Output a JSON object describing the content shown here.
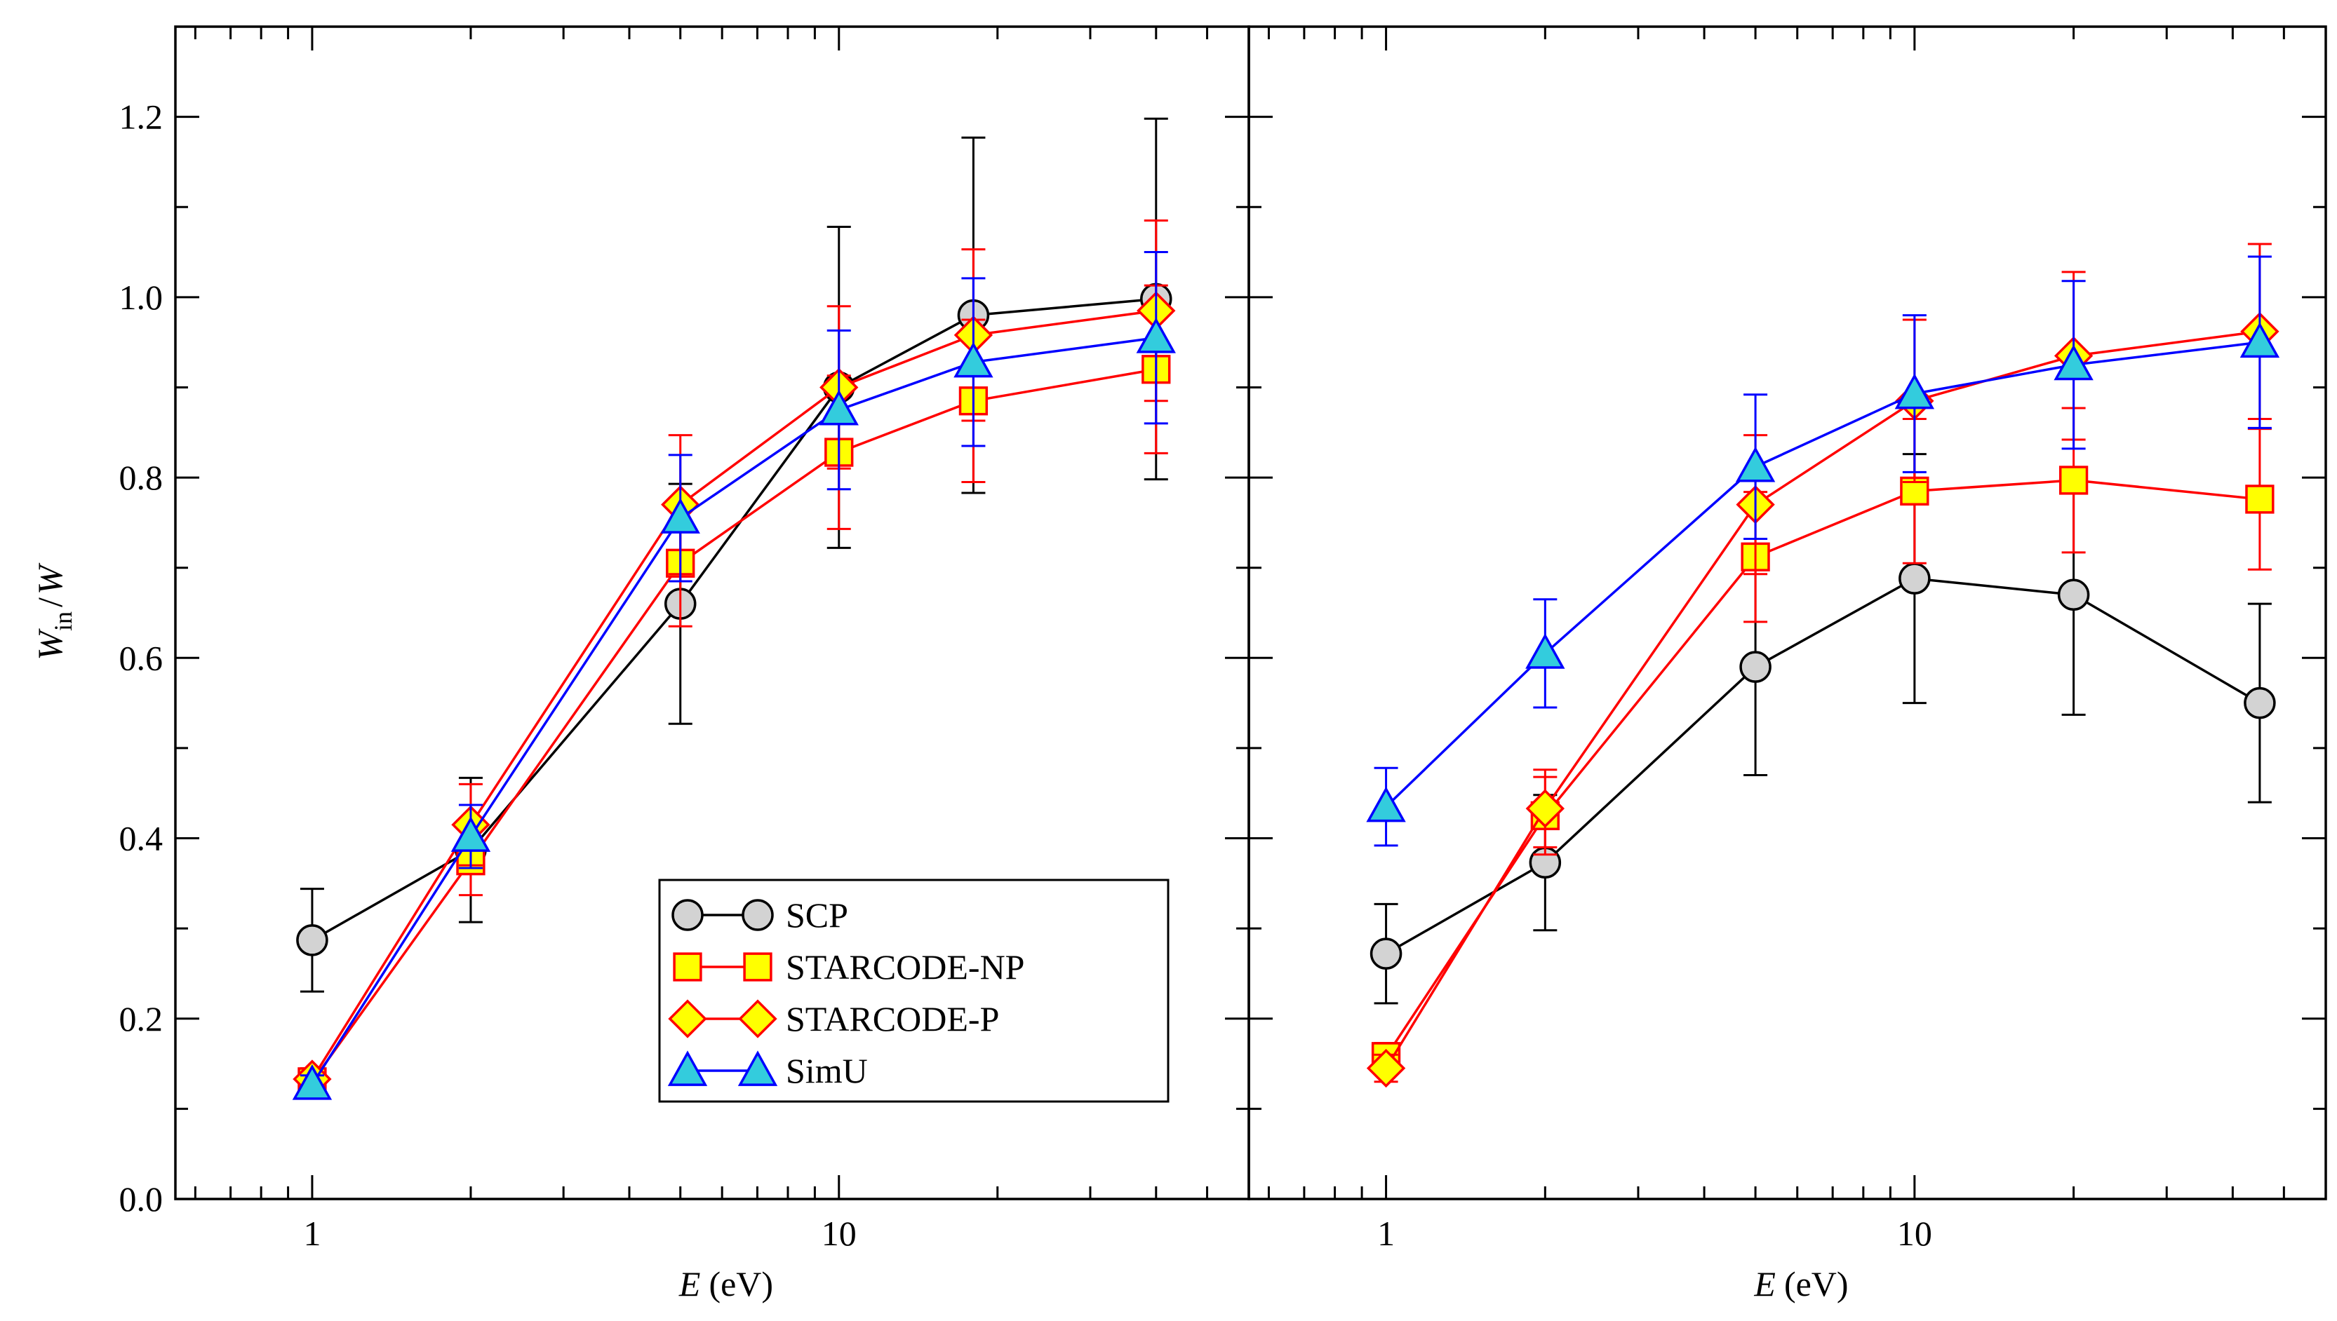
{
  "chart_data": [
    {
      "type": "line",
      "panel": "left",
      "xscale": "log",
      "xlim": [
        0.55,
        60
      ],
      "ylim": [
        0.0,
        1.3
      ],
      "xlabel": "E",
      "xlabel_unit": "(eV)",
      "ylabel": "W_in/W",
      "ylabel_parts": {
        "base": "W",
        "sub": "in",
        "slash": "/",
        "denom": "W"
      },
      "xticks": [
        1,
        10
      ],
      "xtick_labels": [
        "1",
        "10"
      ],
      "yticks": [
        0.0,
        0.2,
        0.4,
        0.6,
        0.8,
        1.0,
        1.2
      ],
      "ytick_labels": [
        "0.0",
        "0.2",
        "0.4",
        "0.6",
        "0.8",
        "1.0",
        "1.2"
      ],
      "series": [
        {
          "name": "SCP",
          "marker": "circle",
          "line_color": "#000000",
          "fill_color": "#d3d3d3",
          "edge_color": "#000000",
          "err_color": "#000000",
          "x": [
            1,
            2,
            5,
            10,
            18,
            40
          ],
          "y": [
            0.287,
            0.387,
            0.66,
            0.9,
            0.98,
            0.998
          ],
          "err": [
            0.057,
            0.08,
            0.133,
            0.178,
            0.197,
            0.2
          ]
        },
        {
          "name": "STARCODE-NP",
          "marker": "square",
          "line_color": "#ff0000",
          "fill_color": "#ffff00",
          "edge_color": "#ff0000",
          "err_color": "#ff0000",
          "x": [
            1,
            2,
            5,
            10,
            18,
            40
          ],
          "y": [
            0.13,
            0.375,
            0.705,
            0.828,
            0.885,
            0.92
          ],
          "err": [
            0.01,
            0.038,
            0.07,
            0.085,
            0.09,
            0.093
          ]
        },
        {
          "name": "STARCODE-P",
          "marker": "diamond",
          "line_color": "#ff0000",
          "fill_color": "#ffff00",
          "edge_color": "#ff0000",
          "err_color": "#ff0000",
          "x": [
            1,
            2,
            5,
            10,
            18,
            40
          ],
          "y": [
            0.133,
            0.415,
            0.77,
            0.9,
            0.958,
            0.985
          ],
          "err": [
            0.012,
            0.045,
            0.077,
            0.09,
            0.095,
            0.1
          ]
        },
        {
          "name": "SimU",
          "marker": "triangle",
          "line_color": "#0000ff",
          "fill_color": "#33ccdd",
          "edge_color": "#0000ff",
          "err_color": "#0000ff",
          "x": [
            1,
            2,
            5,
            10,
            18,
            40
          ],
          "y": [
            0.127,
            0.402,
            0.755,
            0.875,
            0.928,
            0.955
          ],
          "err": [
            0.01,
            0.035,
            0.07,
            0.088,
            0.093,
            0.095
          ]
        }
      ],
      "legend": {
        "position": "lower-right",
        "entries": [
          "SCP",
          "STARCODE-NP",
          "STARCODE-P",
          "SimU"
        ]
      }
    },
    {
      "type": "line",
      "panel": "right",
      "xscale": "log",
      "xlim": [
        0.55,
        60
      ],
      "ylim": [
        0.0,
        1.3
      ],
      "xlabel": "E",
      "xlabel_unit": "(eV)",
      "xticks": [
        1,
        10
      ],
      "xtick_labels": [
        "1",
        "10"
      ],
      "series": [
        {
          "name": "SCP",
          "marker": "circle",
          "line_color": "#000000",
          "fill_color": "#d3d3d3",
          "edge_color": "#000000",
          "err_color": "#000000",
          "x": [
            1,
            2,
            5,
            10,
            20,
            45
          ],
          "y": [
            0.272,
            0.373,
            0.59,
            0.688,
            0.67,
            0.55
          ],
          "err": [
            0.055,
            0.075,
            0.12,
            0.138,
            0.133,
            0.11
          ]
        },
        {
          "name": "STARCODE-NP",
          "marker": "square",
          "line_color": "#ff0000",
          "fill_color": "#ffff00",
          "edge_color": "#ff0000",
          "err_color": "#ff0000",
          "x": [
            1,
            2,
            5,
            10,
            20,
            45
          ],
          "y": [
            0.158,
            0.425,
            0.712,
            0.785,
            0.797,
            0.776
          ],
          "err": [
            0.015,
            0.043,
            0.072,
            0.08,
            0.08,
            0.078
          ]
        },
        {
          "name": "STARCODE-P",
          "marker": "diamond",
          "line_color": "#ff0000",
          "fill_color": "#ffff00",
          "edge_color": "#ff0000",
          "err_color": "#ff0000",
          "x": [
            1,
            2,
            5,
            10,
            20,
            45
          ],
          "y": [
            0.145,
            0.433,
            0.77,
            0.885,
            0.935,
            0.962
          ],
          "err": [
            0.015,
            0.043,
            0.077,
            0.09,
            0.093,
            0.097
          ]
        },
        {
          "name": "SimU",
          "marker": "triangle",
          "line_color": "#0000ff",
          "fill_color": "#33ccdd",
          "edge_color": "#0000ff",
          "err_color": "#0000ff",
          "x": [
            1,
            2,
            5,
            10,
            20,
            45
          ],
          "y": [
            0.435,
            0.605,
            0.812,
            0.893,
            0.925,
            0.95
          ],
          "err": [
            0.043,
            0.06,
            0.08,
            0.087,
            0.093,
            0.095
          ]
        }
      ]
    }
  ]
}
